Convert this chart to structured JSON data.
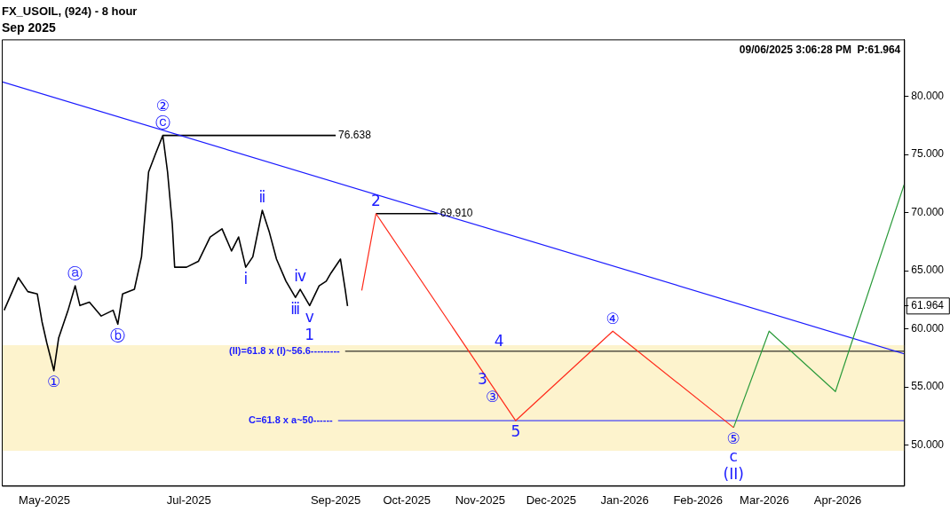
{
  "chart_data": {
    "type": "line",
    "title": "FX_USOIL, (924) - 8 hour",
    "subtitle": "Sep 2025",
    "xlim": [
      "2025-04-13",
      "2026-04-29"
    ],
    "xticks": [
      {
        "value": "2025-05-01",
        "label": "May-2025"
      },
      {
        "value": "2025-07-01",
        "label": "Jul-2025"
      },
      {
        "value": "2025-09-01",
        "label": "Sep-2025"
      },
      {
        "value": "2025-10-01",
        "label": "Oct-2025"
      },
      {
        "value": "2025-11-01",
        "label": "Nov-2025"
      },
      {
        "value": "2025-12-01",
        "label": "Dec-2025"
      },
      {
        "value": "2026-01-01",
        "label": "Jan-2026"
      },
      {
        "value": "2026-02-01",
        "label": "Feb-2026"
      },
      {
        "value": "2026-03-01",
        "label": "Mar-2026"
      },
      {
        "value": "2026-04-01",
        "label": "Apr-2026"
      }
    ],
    "ylim": [
      46.5,
      84.9
    ],
    "yticks": [
      {
        "value": 50,
        "label": "50.000"
      },
      {
        "value": 55,
        "label": "55.000"
      },
      {
        "value": 60,
        "label": "60.000"
      },
      {
        "value": 61.964,
        "label": "61.964"
      },
      {
        "value": 65,
        "label": "65.000"
      },
      {
        "value": 70,
        "label": "70.000"
      },
      {
        "value": 75,
        "label": "75.000"
      },
      {
        "value": 80,
        "label": "80.000"
      }
    ],
    "grid": false,
    "legend": false,
    "marker": "none",
    "line_style": "solid",
    "series": [
      {
        "color": "#000000",
        "x": [
          "2025-04-14",
          "2025-04-20",
          "2025-04-24",
          "2025-04-28",
          "2025-04-30",
          "2025-05-02",
          "2025-05-05",
          "2025-05-07",
          "2025-05-11",
          "2025-05-14",
          "2025-05-16",
          "2025-05-20",
          "2025-05-25",
          "2025-05-30",
          "2025-06-01",
          "2025-06-03",
          "2025-06-08",
          "2025-06-11",
          "2025-06-14",
          "2025-06-17",
          "2025-06-20",
          "2025-06-22",
          "2025-06-24",
          "2025-06-25",
          "2025-06-30",
          "2025-07-05",
          "2025-07-10",
          "2025-07-15",
          "2025-07-19",
          "2025-07-22",
          "2025-07-25",
          "2025-07-28",
          "2025-08-01",
          "2025-08-04",
          "2025-08-07",
          "2025-08-11",
          "2025-08-15",
          "2025-08-17",
          "2025-08-21",
          "2025-08-25",
          "2025-08-28",
          "2025-08-30",
          "2025-09-03",
          "2025-09-05",
          "2025-09-06"
        ],
        "values": [
          61.6,
          64.4,
          63.2,
          63.0,
          60.6,
          58.8,
          56.4,
          59.2,
          61.6,
          63.7,
          62.0,
          62.3,
          61.1,
          61.6,
          60.4,
          63.0,
          63.4,
          66.2,
          73.5,
          75.1,
          76.638,
          73.5,
          69.0,
          65.3,
          65.3,
          65.8,
          67.9,
          68.6,
          66.7,
          67.9,
          65.3,
          66.2,
          70.2,
          68.3,
          66.0,
          64.1,
          62.7,
          63.4,
          62.0,
          63.7,
          64.1,
          64.8,
          66.0,
          63.4,
          61.964
        ]
      },
      {
        "color": "#ff2a1a",
        "x": [
          "2025-09-12",
          "2025-09-18",
          "2025-11-16",
          "2025-12-27",
          "2026-02-16"
        ],
        "values": [
          63.3,
          69.91,
          52.1,
          59.8,
          51.5
        ]
      },
      {
        "color": "#2a9a3a",
        "x": [
          "2026-02-16",
          "2026-03-03",
          "2026-03-31",
          "2026-04-29"
        ],
        "values": [
          51.5,
          59.8,
          54.6,
          72.4
        ]
      },
      {
        "color": "#1a1aff",
        "x": [
          "2025-04-13",
          "2026-04-29"
        ],
        "values": [
          81.26,
          57.85
        ]
      },
      {
        "color": "#000000",
        "x": [
          "2025-06-20",
          "2025-09-01"
        ],
        "values": [
          76.638,
          76.638
        ]
      },
      {
        "color": "#000000",
        "x": [
          "2025-09-18",
          "2025-10-14"
        ],
        "values": [
          69.91,
          69.91
        ]
      }
    ],
    "ref_lines": [
      {
        "axis": "y",
        "value": 58.07,
        "color": "#000000"
      },
      {
        "axis": "y",
        "value": 52.1,
        "color": "#1a1aff"
      }
    ],
    "bands": [
      {
        "axis": "y",
        "from": 49.5,
        "to": 58.6,
        "color": "#fdf3cd"
      }
    ],
    "annotations": [
      "09/06/2025 3:06:28 PM  P:61.964",
      {
        "text": "(II)=61.8 x (I)~56.6---------",
        "x": "2025-09-05",
        "y": 58.07
      },
      {
        "text": "C=61.8 x a~50------",
        "x": "2025-09-02",
        "y": 52.1
      },
      {
        "text": "76.638",
        "x": "2025-09-01",
        "y": 76.638
      },
      {
        "text": "69.910",
        "x": "2025-10-14",
        "y": 69.91
      },
      {
        "text": "①",
        "x": "2025-05-05",
        "y": 56.4
      },
      {
        "text": "ⓒ",
        "x": "2025-06-20",
        "y": 76.638
      },
      {
        "text": "②",
        "x": "2025-06-20",
        "y": 76.638
      },
      {
        "text": "ⓐ",
        "x": "2025-05-14",
        "y": 63.7
      },
      {
        "text": "ⓑ",
        "x": "2025-06-01",
        "y": 60.4
      },
      {
        "text": "ⅰ",
        "x": "2025-07-25",
        "y": 65.3
      },
      {
        "text": "ⅱ",
        "x": "2025-08-01",
        "y": 70.2
      },
      {
        "text": "ⅲ",
        "x": "2025-08-15",
        "y": 62.7
      },
      {
        "text": "ⅳ",
        "x": "2025-08-17",
        "y": 63.4
      },
      {
        "text": "ⅴ",
        "x": "2025-08-21",
        "y": 62.0
      },
      {
        "text": "1",
        "x": "2025-08-21",
        "y": 62.0
      },
      {
        "text": "2",
        "x": "2025-09-18",
        "y": 69.91
      },
      {
        "text": "3",
        "x": "2025-11-07",
        "y": 54.8
      },
      {
        "text": "4",
        "x": "2025-11-14",
        "y": 58.07
      },
      {
        "text": "③",
        "x": "2025-11-12",
        "y": 53.3
      },
      {
        "text": "5",
        "x": "2025-11-16",
        "y": 52.1
      },
      {
        "text": "④",
        "x": "2025-12-27",
        "y": 59.8
      },
      {
        "text": "⑤",
        "x": "2026-02-16",
        "y": 51.5
      },
      {
        "text": "c",
        "x": "2026-02-16",
        "y": 51.5
      },
      {
        "text": "(II)",
        "x": "2026-02-16",
        "y": 51.5
      }
    ]
  }
}
